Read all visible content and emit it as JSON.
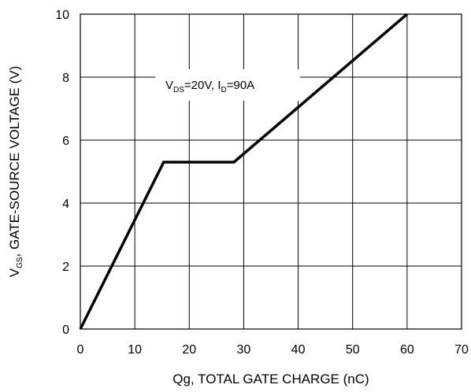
{
  "chart_data": {
    "type": "line",
    "title": "",
    "xlabel": "Qg, TOTAL GATE CHARGE (nC)",
    "ylabel": {
      "main": "V",
      "sub": "GS",
      "rest": ",  GATE-SOURCE VOLTAGE (V)"
    },
    "xlim": [
      0,
      70
    ],
    "ylim": [
      0,
      10
    ],
    "x_ticks": [
      "0",
      "10",
      "20",
      "30",
      "40",
      "50",
      "60",
      "70"
    ],
    "y_ticks": [
      "0",
      "2",
      "4",
      "6",
      "8",
      "10"
    ],
    "grid": true,
    "series": [
      {
        "x": [
          0,
          15.3,
          28.2,
          60
        ],
        "y": [
          0,
          5.3,
          5.3,
          10
        ]
      }
    ],
    "annotation": {
      "v": "V",
      "ds": "DS",
      "cond1": "=20V, I",
      "d": "D",
      "cond2": "=90A"
    },
    "colors": {
      "line": "#000000",
      "grid": "#000000",
      "annotation_bg": "#ffffff"
    }
  }
}
